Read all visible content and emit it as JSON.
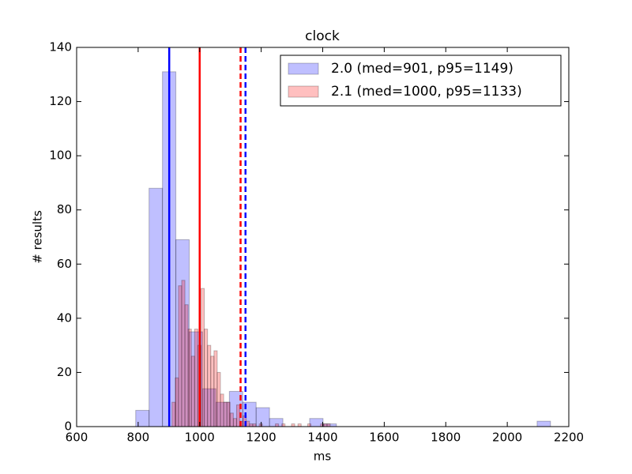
{
  "chart_data": {
    "type": "histogram",
    "title": "clock",
    "xlabel": "ms",
    "ylabel": "# results",
    "xlim": [
      600,
      2200
    ],
    "xticks": [
      600,
      800,
      1000,
      1200,
      1400,
      1600,
      1800,
      2000,
      2200
    ],
    "ylim": [
      0,
      140
    ],
    "yticks": [
      0,
      20,
      40,
      60,
      80,
      100,
      120,
      140
    ],
    "legend": "upper right",
    "series": [
      {
        "name": "2.0 (med=901, p95=1149)",
        "color": "#0000ff",
        "median": 901,
        "p95": 1149,
        "bins": [
          792,
          835.5,
          879,
          922.5,
          966,
          1009.5,
          1053,
          1096.5,
          1140,
          1183.5,
          1227,
          1270.5,
          1314,
          1357.5,
          1401,
          1444.5,
          1488,
          1531.5,
          1575,
          1618.5,
          1662,
          1705.5,
          1749,
          1792.5,
          1836,
          1879.5,
          1923,
          1966.5,
          2010,
          2053.5,
          2097,
          2140.5
        ],
        "values": [
          6,
          88,
          131,
          69,
          35,
          14,
          9,
          13,
          9,
          7,
          3,
          0,
          0,
          3,
          1,
          0,
          0,
          0,
          0,
          0,
          0,
          0,
          0,
          0,
          0,
          0,
          0,
          0,
          0,
          0,
          2
        ]
      },
      {
        "name": "2.1 (med=1000, p95=1133)",
        "color": "#ff0000",
        "median": 1000,
        "p95": 1133,
        "bins": [
          910,
          920.5,
          931,
          941.5,
          952,
          962.5,
          973,
          983.5,
          994,
          1004.5,
          1015,
          1025.5,
          1036,
          1046.5,
          1057,
          1067.5,
          1078,
          1088.5,
          1099,
          1109.5,
          1120,
          1130.5,
          1141,
          1151.5,
          1162,
          1172.5,
          1183,
          1193.5,
          1204,
          1214.5,
          1225,
          1235.5,
          1246,
          1256.5,
          1267,
          1277.5,
          1288,
          1298.5,
          1309,
          1319.5,
          1330,
          1340.5,
          1351,
          1361.5,
          1372,
          1382.5,
          1393,
          1403.5,
          1414,
          1424.5
        ],
        "values": [
          9,
          18,
          52,
          54,
          45,
          36,
          26,
          36,
          30,
          51,
          36,
          30,
          26,
          28,
          20,
          12,
          9,
          9,
          5,
          3,
          8,
          2,
          4,
          2,
          1,
          1,
          0,
          1,
          0,
          0,
          0,
          0,
          1,
          0,
          1,
          0,
          0,
          1,
          0,
          1,
          0,
          0,
          1,
          0,
          0,
          0,
          1,
          1,
          1
        ]
      }
    ]
  }
}
